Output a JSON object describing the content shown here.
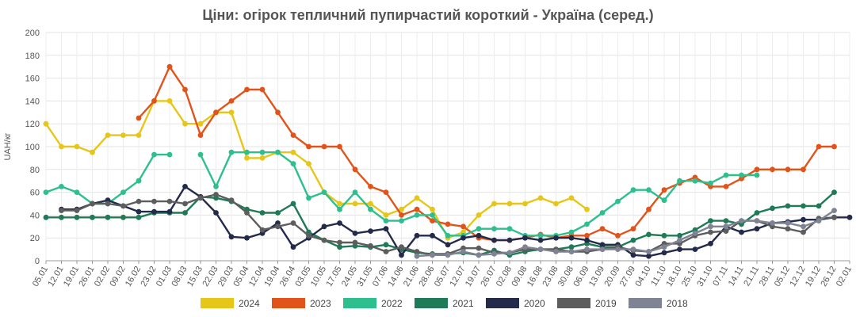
{
  "chart_data": {
    "type": "line",
    "title": "Ціни: огірок тепличний пупирчастий короткий - Україна (серед.)",
    "ylabel": "UAH/кг",
    "xlabel": "",
    "ylim": [
      0,
      200
    ],
    "yticks": [
      0,
      20,
      40,
      60,
      80,
      100,
      120,
      140,
      160,
      180,
      200
    ],
    "grid": true,
    "legend_position": "bottom",
    "categories": [
      "05.01",
      "12.01",
      "19.01",
      "26.01",
      "02.02",
      "09.02",
      "16.02",
      "23.02",
      "01.03",
      "08.03",
      "15.03",
      "22.03",
      "29.03",
      "05.04",
      "12.04",
      "19.04",
      "26.04",
      "03.05",
      "10.05",
      "17.05",
      "24.05",
      "31.05",
      "07.06",
      "14.06",
      "21.06",
      "28.06",
      "05.07",
      "12.07",
      "19.07",
      "26.07",
      "02.08",
      "09.08",
      "16.08",
      "23.08",
      "30.08",
      "06.09",
      "13.09",
      "20.09",
      "27.09",
      "04.10",
      "11.10",
      "18.10",
      "25.10",
      "31.10",
      "07.11",
      "14.11",
      "21.11",
      "28.11",
      "05.12",
      "12.12",
      "19.12",
      "26.12",
      "02.01"
    ],
    "series": [
      {
        "name": "2024",
        "color": "#e6c619",
        "values": [
          120,
          100,
          100,
          95,
          110,
          110,
          110,
          140,
          140,
          120,
          120,
          130,
          130,
          90,
          90,
          95,
          95,
          85,
          60,
          50,
          50,
          50,
          40,
          45,
          55,
          45,
          20,
          25,
          40,
          50,
          50,
          50,
          55,
          50,
          55,
          45,
          null,
          null,
          null,
          null,
          null,
          null,
          null,
          null,
          null,
          null,
          null,
          null,
          null,
          null,
          null,
          null,
          null
        ]
      },
      {
        "name": "2023",
        "color": "#e2531a",
        "values": [
          null,
          null,
          null,
          null,
          null,
          null,
          125,
          140,
          170,
          150,
          110,
          130,
          140,
          150,
          150,
          130,
          110,
          100,
          100,
          100,
          80,
          65,
          60,
          40,
          45,
          35,
          32,
          30,
          20,
          18,
          18,
          20,
          23,
          20,
          22,
          22,
          28,
          22,
          28,
          45,
          62,
          68,
          73,
          65,
          65,
          72,
          80,
          80,
          80,
          80,
          100,
          100,
          null
        ]
      },
      {
        "name": "2022",
        "color": "#2ebf8e",
        "values": [
          60,
          65,
          60,
          50,
          50,
          60,
          70,
          93,
          93,
          null,
          93,
          65,
          95,
          95,
          95,
          95,
          85,
          55,
          60,
          45,
          60,
          45,
          35,
          35,
          40,
          40,
          22,
          22,
          28,
          28,
          28,
          22,
          22,
          22,
          25,
          32,
          42,
          52,
          62,
          62,
          53,
          70,
          70,
          68,
          75,
          75,
          75,
          null,
          null,
          null,
          null,
          null,
          null
        ]
      },
      {
        "name": "2021",
        "color": "#1e7a57",
        "values": [
          38,
          38,
          38,
          38,
          38,
          38,
          38,
          42,
          42,
          42,
          56,
          55,
          52,
          45,
          42,
          42,
          50,
          25,
          18,
          12,
          13,
          12,
          14,
          10,
          7,
          6,
          6,
          7,
          5,
          9,
          5,
          8,
          10,
          10,
          12,
          15,
          12,
          12,
          18,
          23,
          22,
          22,
          27,
          35,
          35,
          32,
          42,
          46,
          48,
          48,
          48,
          60,
          null
        ]
      },
      {
        "name": "2020",
        "color": "#232a4a",
        "values": [
          null,
          45,
          45,
          50,
          53,
          48,
          43,
          43,
          43,
          65,
          56,
          42,
          21,
          20,
          24,
          33,
          12,
          20,
          30,
          33,
          24,
          26,
          28,
          5,
          22,
          22,
          14,
          20,
          22,
          18,
          18,
          20,
          18,
          20,
          20,
          18,
          14,
          14,
          5,
          4,
          7,
          10,
          10,
          15,
          30,
          25,
          28,
          33,
          34,
          36,
          36,
          38,
          38
        ]
      },
      {
        "name": "2019",
        "color": "#5d5d5d",
        "values": [
          null,
          44,
          44,
          50,
          50,
          48,
          52,
          52,
          52,
          50,
          55,
          58,
          53,
          42,
          27,
          30,
          33,
          22,
          18,
          16,
          16,
          13,
          8,
          12,
          8,
          5,
          6,
          11,
          11,
          7,
          7,
          10,
          10,
          10,
          8,
          8,
          10,
          12,
          9,
          8,
          15,
          15,
          22,
          25,
          26,
          35,
          35,
          30,
          28,
          25,
          37,
          38,
          null
        ]
      },
      {
        "name": "2018",
        "color": "#7f8393",
        "values": [
          null,
          null,
          null,
          null,
          null,
          null,
          null,
          null,
          null,
          null,
          null,
          null,
          null,
          null,
          null,
          null,
          null,
          null,
          null,
          null,
          null,
          null,
          null,
          null,
          4,
          5,
          5,
          8,
          5,
          6,
          7,
          12,
          10,
          8,
          8,
          10,
          10,
          10,
          10,
          8,
          12,
          18,
          24,
          30,
          30,
          35,
          35,
          33,
          33,
          30,
          35,
          44,
          null
        ]
      }
    ]
  }
}
